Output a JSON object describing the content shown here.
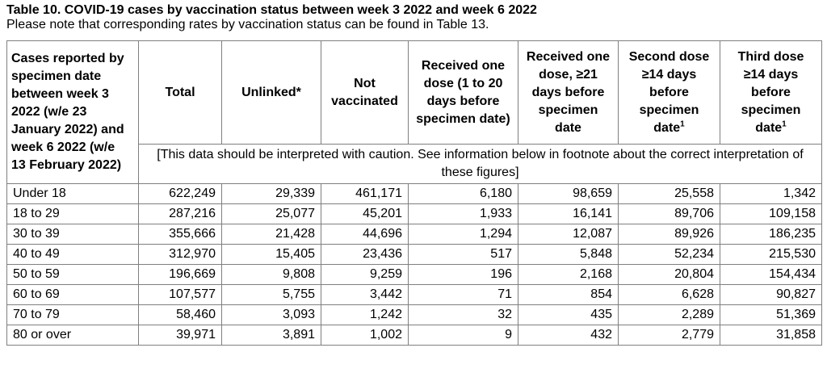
{
  "title": "Table 10. COVID-19 cases by vaccination status between week 3 2022 and week 6 2022",
  "subtitle": "Please note that corresponding rates by vaccination status can be found in Table 13.",
  "headers": {
    "first": "Cases reported by specimen date between week 3 2022 (w/e 23 January 2022) and week 6 2022 (w/e 13 February 2022)",
    "total": "Total",
    "unlinked": "Unlinked*",
    "not_vaccinated": "Not vaccinated",
    "one_dose_1_20": "Received one dose (1 to 20 days before specimen date)",
    "one_dose_21": "Received one dose, ≥21 days before specimen date",
    "second_dose": "Second dose ≥14 days before specimen date",
    "second_dose_sup": "1",
    "third_dose": "Third dose ≥14 days before specimen date",
    "third_dose_sup": "1"
  },
  "caution_note": "[This data should be interpreted with caution. See information below in footnote about the correct interpretation of these figures]",
  "rows": [
    [
      "Under 18",
      "622,249",
      "29,339",
      "461,171",
      "6,180",
      "98,659",
      "25,558",
      "1,342"
    ],
    [
      "18 to 29",
      "287,216",
      "25,077",
      "45,201",
      "1,933",
      "16,141",
      "89,706",
      "109,158"
    ],
    [
      "30 to 39",
      "355,666",
      "21,428",
      "44,696",
      "1,294",
      "12,087",
      "89,926",
      "186,235"
    ],
    [
      "40 to 49",
      "312,970",
      "15,405",
      "23,436",
      "517",
      "5,848",
      "52,234",
      "215,530"
    ],
    [
      "50 to 59",
      "196,669",
      "9,808",
      "9,259",
      "196",
      "2,168",
      "20,804",
      "154,434"
    ],
    [
      "60 to 69",
      "107,577",
      "5,755",
      "3,442",
      "71",
      "854",
      "6,628",
      "90,827"
    ],
    [
      "70 to 79",
      "58,460",
      "3,093",
      "1,242",
      "32",
      "435",
      "2,289",
      "51,369"
    ],
    [
      "80 or over",
      "39,971",
      "3,891",
      "1,002",
      "9",
      "432",
      "2,779",
      "31,858"
    ]
  ]
}
